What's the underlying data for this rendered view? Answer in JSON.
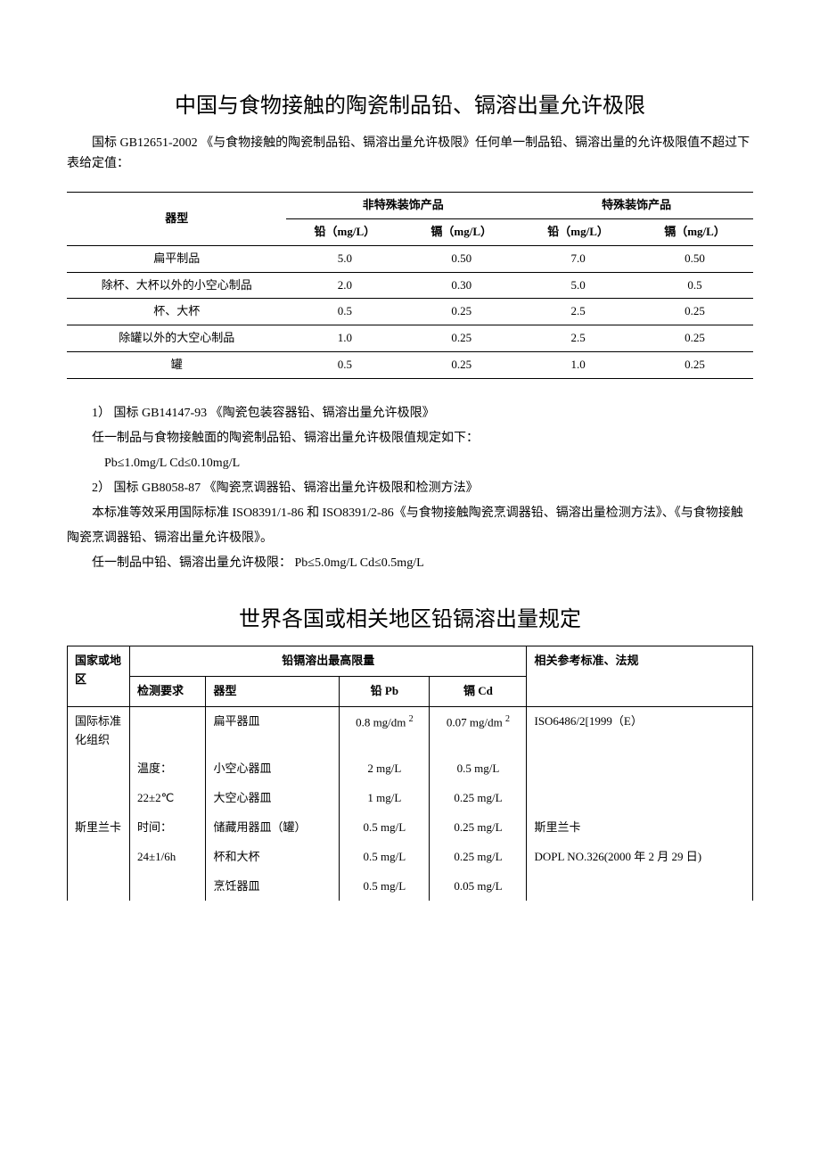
{
  "title1": "中国与食物接触的陶瓷制品铅、镉溶出量允许极限",
  "intro": "国标 GB12651-2002 《与食物接触的陶瓷制品铅、镉溶出量允许极限》任何单一制品铅、镉溶出量的允许极限值不超过下表给定值：",
  "table1": {
    "col_widths": [
      "32%",
      "17%",
      "17%",
      "17%",
      "17%"
    ],
    "header_row1": [
      "器型",
      "非特殊装饰产品",
      "特殊装饰产品"
    ],
    "header_row2": [
      "铅（mg/L）",
      "镉（mg/L）",
      "铅（mg/L）",
      "镉（mg/L）"
    ],
    "rows": [
      [
        "扁平制品",
        "5.0",
        "0.50",
        "7.0",
        "0.50"
      ],
      [
        "除杯、大杯以外的小空心制品",
        "2.0",
        "0.30",
        "5.0",
        "0.5"
      ],
      [
        "杯、大杯",
        "0.5",
        "0.25",
        "2.5",
        "0.25"
      ],
      [
        "除罐以外的大空心制品",
        "1.0",
        "0.25",
        "2.5",
        "0.25"
      ],
      [
        "罐",
        "0.5",
        "0.25",
        "1.0",
        "0.25"
      ]
    ]
  },
  "body": {
    "p1": "1）   国标 GB14147-93  《陶瓷包装容器铅、镉溶出量允许极限》",
    "p2": "任一制品与食物接触面的陶瓷制品铅、镉溶出量允许极限值规定如下：",
    "p3": "Pb≤1.0mg/L          Cd≤0.10mg/L",
    "p4": "2）   国标 GB8058-87  《陶瓷烹调器铅、镉溶出量允许极限和检测方法》",
    "p5": "本标准等效采用国际标准 ISO8391/1-86 和 ISO8391/2-86《与食物接触陶瓷烹调器铅、镉溶出量检测方法》、《与食物接触陶瓷烹调器铅、镉溶出量允许极限》。",
    "p6": "任一制品中铅、镉溶出量允许极限：  Pb≤5.0mg/L      Cd≤0.5mg/L"
  },
  "title2": "世界各国或相关地区铅镉溶出量规定",
  "table2": {
    "header1": {
      "c1": "国家或地区",
      "c2": "铅镉溶出最高限量",
      "c3": "相关参考标准、法规"
    },
    "header2": {
      "c1": "检测要求",
      "c2": "器型",
      "c3": "铅 Pb",
      "c4": "镉 Cd"
    },
    "rows": [
      {
        "region": "国际标准化组织",
        "req": "",
        "type": "扁平器皿",
        "pb": "0.8 mg/dm",
        "cd": "0.07 mg/dm",
        "ref": "ISO6486/2[1999（E）"
      },
      {
        "region": "",
        "req": "温度：",
        "type": "小空心器皿",
        "pb": "2 mg/L",
        "cd": "0.5 mg/L",
        "ref": ""
      },
      {
        "region": "",
        "req": "22±2℃",
        "type": "大空心器皿",
        "pb": "1 mg/L",
        "cd": "0.25 mg/L",
        "ref": ""
      },
      {
        "region": "斯里兰卡",
        "req": "时间：",
        "type": "储藏用器皿（罐）",
        "pb": "0.5 mg/L",
        "cd": "0.25 mg/L",
        "ref": "斯里兰卡"
      },
      {
        "region": "",
        "req": "24±1/6h",
        "type": "杯和大杯",
        "pb": "0.5 mg/L",
        "cd": "0.25 mg/L",
        "ref": "DOPL NO.326(2000 年 2 月 29 日)"
      },
      {
        "region": "",
        "req": "",
        "type": "烹饪器皿",
        "pb": "0.5 mg/L",
        "cd": "0.05 mg/L",
        "ref": ""
      }
    ],
    "use_sup2": [
      0
    ]
  }
}
